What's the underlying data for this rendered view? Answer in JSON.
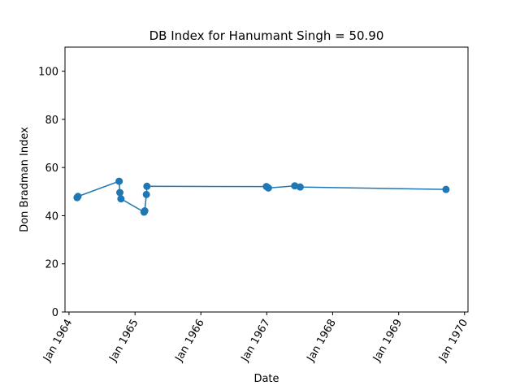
{
  "chart_data": {
    "type": "line",
    "title": "DB Index for Hanumant Singh = 50.90",
    "xlabel": "Date",
    "ylabel": "Don Bradman Index",
    "xlim": [
      "1963-12-10",
      "1970-01-20"
    ],
    "ylim": [
      0,
      110
    ],
    "grid": false,
    "xticks": [
      {
        "date": "1964-01-01",
        "label": "Jan 1964"
      },
      {
        "date": "1965-01-01",
        "label": "Jan 1965"
      },
      {
        "date": "1966-01-01",
        "label": "Jan 1966"
      },
      {
        "date": "1967-01-01",
        "label": "Jan 1967"
      },
      {
        "date": "1968-01-01",
        "label": "Jan 1968"
      },
      {
        "date": "1969-01-01",
        "label": "Jan 1969"
      },
      {
        "date": "1970-01-01",
        "label": "Jan 1970"
      }
    ],
    "yticks": [
      0,
      20,
      40,
      60,
      80,
      100
    ],
    "series": [
      {
        "color": "#1f77b4",
        "points": [
          {
            "x": "1964-02-15",
            "y": 47.5
          },
          {
            "x": "1964-02-20",
            "y": 48.0
          },
          {
            "x": "1964-10-05",
            "y": 54.3
          },
          {
            "x": "1964-10-09",
            "y": 49.6
          },
          {
            "x": "1964-10-15",
            "y": 47.0
          },
          {
            "x": "1965-02-20",
            "y": 41.5
          },
          {
            "x": "1965-02-24",
            "y": 42.0
          },
          {
            "x": "1965-03-05",
            "y": 48.8
          },
          {
            "x": "1965-03-08",
            "y": 52.2
          },
          {
            "x": "1966-12-30",
            "y": 52.1
          },
          {
            "x": "1967-01-10",
            "y": 51.5
          },
          {
            "x": "1967-06-05",
            "y": 52.4
          },
          {
            "x": "1967-07-05",
            "y": 51.9
          },
          {
            "x": "1969-09-20",
            "y": 50.9
          }
        ]
      }
    ]
  }
}
